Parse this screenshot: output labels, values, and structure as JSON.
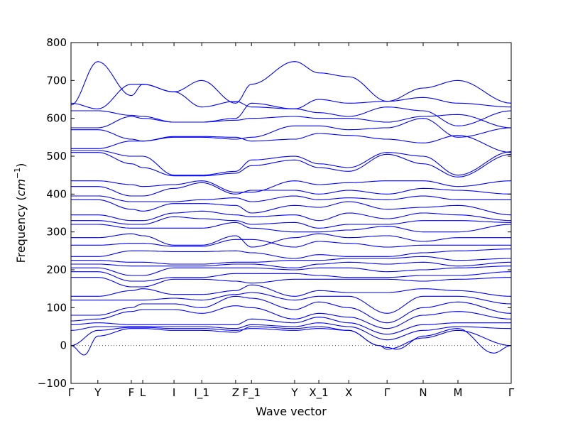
{
  "chart_data": {
    "type": "line",
    "title": "",
    "xlabel": "Wave vector",
    "ylabel": "Frequency (cm⁻¹)",
    "ylabel_base": "Frequency (",
    "ylabel_unit": "cm",
    "ylabel_exp": "−1",
    "ylabel_close": ")",
    "ylim": [
      -100,
      800
    ],
    "yticks": [
      -100,
      0,
      100,
      200,
      300,
      400,
      500,
      600,
      700,
      800
    ],
    "xlim": [
      0,
      1
    ],
    "grid": false,
    "zero_line": true,
    "line_color": "#0000ff",
    "kpoints": [
      {
        "label": "Γ",
        "x": 0.0
      },
      {
        "label": "Y",
        "x": 0.061
      },
      {
        "label": "F",
        "x": 0.137
      },
      {
        "label": "L",
        "x": 0.163
      },
      {
        "label": "I",
        "x": 0.234
      },
      {
        "label": "I_1",
        "x": 0.297
      },
      {
        "label": "Z",
        "x": 0.374
      },
      {
        "label": "F_1",
        "x": 0.41
      },
      {
        "label": "Y",
        "x": 0.508
      },
      {
        "label": "X_1",
        "x": 0.563
      },
      {
        "label": "X",
        "x": 0.631
      },
      {
        "label": "Γ",
        "x": 0.718
      },
      {
        "label": "N",
        "x": 0.8
      },
      {
        "label": "M",
        "x": 0.879
      },
      {
        "label": "Γ",
        "x": 1.0
      }
    ],
    "series": [
      {
        "x": [
          0,
          0.061,
          0.137,
          0.163,
          0.234,
          0.297,
          0.374,
          0.41,
          0.508,
          0.563,
          0.631,
          0.718,
          0.8,
          0.879,
          1
        ],
        "y": [
          635,
          750,
          660,
          690,
          670,
          700,
          640,
          690,
          750,
          720,
          710,
          645,
          680,
          700,
          640
        ]
      },
      {
        "x": [
          0,
          0.061,
          0.137,
          0.163,
          0.234,
          0.297,
          0.374,
          0.41,
          0.508,
          0.563,
          0.631,
          0.718,
          0.8,
          0.879,
          1
        ],
        "y": [
          640,
          625,
          690,
          690,
          670,
          630,
          645,
          630,
          625,
          650,
          640,
          645,
          655,
          640,
          630
        ]
      },
      {
        "x": [
          0,
          0.061,
          0.137,
          0.163,
          0.234,
          0.297,
          0.374,
          0.41,
          0.508,
          0.563,
          0.631,
          0.718,
          0.8,
          0.879,
          1
        ],
        "y": [
          620,
          620,
          608,
          605,
          590,
          590,
          600,
          640,
          625,
          615,
          605,
          630,
          620,
          580,
          620
        ]
      },
      {
        "x": [
          0,
          0.061,
          0.137,
          0.163,
          0.234,
          0.297,
          0.374,
          0.41,
          0.508,
          0.563,
          0.631,
          0.718,
          0.8,
          0.879,
          1
        ],
        "y": [
          575,
          575,
          605,
          600,
          590,
          590,
          595,
          600,
          605,
          600,
          600,
          590,
          605,
          610,
          575
        ]
      },
      {
        "x": [
          0,
          0.061,
          0.137,
          0.163,
          0.234,
          0.297,
          0.374,
          0.41,
          0.508,
          0.563,
          0.631,
          0.718,
          0.8,
          0.879,
          1
        ],
        "y": [
          570,
          570,
          545,
          540,
          550,
          550,
          545,
          550,
          580,
          580,
          570,
          575,
          600,
          550,
          575
        ]
      },
      {
        "x": [
          0,
          0.061,
          0.137,
          0.163,
          0.234,
          0.297,
          0.374,
          0.41,
          0.508,
          0.563,
          0.631,
          0.718,
          0.8,
          0.879,
          1
        ],
        "y": [
          520,
          520,
          540,
          540,
          552,
          552,
          550,
          540,
          545,
          560,
          555,
          545,
          535,
          555,
          510
        ]
      },
      {
        "x": [
          0,
          0.061,
          0.137,
          0.163,
          0.234,
          0.297,
          0.374,
          0.41,
          0.508,
          0.563,
          0.631,
          0.718,
          0.8,
          0.879,
          1
        ],
        "y": [
          515,
          515,
          500,
          500,
          450,
          450,
          460,
          490,
          500,
          480,
          470,
          510,
          500,
          450,
          512
        ]
      },
      {
        "x": [
          0,
          0.061,
          0.137,
          0.163,
          0.234,
          0.297,
          0.374,
          0.41,
          0.508,
          0.563,
          0.631,
          0.718,
          0.8,
          0.879,
          1
        ],
        "y": [
          510,
          510,
          480,
          470,
          448,
          448,
          455,
          475,
          490,
          470,
          460,
          505,
          480,
          445,
          505
        ]
      },
      {
        "x": [
          0,
          0.061,
          0.137,
          0.163,
          0.234,
          0.297,
          0.374,
          0.41,
          0.508,
          0.563,
          0.631,
          0.718,
          0.8,
          0.879,
          1
        ],
        "y": [
          435,
          435,
          425,
          420,
          425,
          435,
          405,
          405,
          435,
          425,
          430,
          435,
          435,
          420,
          435
        ]
      },
      {
        "x": [
          0,
          0.061,
          0.137,
          0.163,
          0.234,
          0.297,
          0.374,
          0.41,
          0.508,
          0.563,
          0.631,
          0.718,
          0.8,
          0.879,
          1
        ],
        "y": [
          420,
          420,
          395,
          395,
          415,
          430,
          400,
          410,
          410,
          400,
          410,
          400,
          415,
          410,
          400
        ]
      },
      {
        "x": [
          0,
          0.061,
          0.137,
          0.163,
          0.234,
          0.297,
          0.374,
          0.41,
          0.508,
          0.563,
          0.631,
          0.718,
          0.8,
          0.879,
          1
        ],
        "y": [
          395,
          395,
          380,
          380,
          380,
          385,
          390,
          380,
          395,
          385,
          390,
          385,
          395,
          385,
          385
        ]
      },
      {
        "x": [
          0,
          0.061,
          0.137,
          0.163,
          0.234,
          0.297,
          0.374,
          0.41,
          0.508,
          0.563,
          0.631,
          0.718,
          0.8,
          0.879,
          1
        ],
        "y": [
          385,
          385,
          360,
          355,
          375,
          375,
          370,
          350,
          370,
          365,
          380,
          360,
          365,
          370,
          345
        ]
      },
      {
        "x": [
          0,
          0.061,
          0.137,
          0.163,
          0.234,
          0.297,
          0.374,
          0.41,
          0.508,
          0.563,
          0.631,
          0.718,
          0.8,
          0.879,
          1
        ],
        "y": [
          345,
          345,
          330,
          330,
          350,
          355,
          345,
          340,
          345,
          330,
          350,
          335,
          350,
          345,
          330
        ]
      },
      {
        "x": [
          0,
          0.061,
          0.137,
          0.163,
          0.234,
          0.297,
          0.374,
          0.41,
          0.508,
          0.563,
          0.631,
          0.718,
          0.8,
          0.879,
          1
        ],
        "y": [
          330,
          330,
          320,
          320,
          340,
          335,
          330,
          320,
          325,
          310,
          320,
          320,
          330,
          330,
          325
        ]
      },
      {
        "x": [
          0,
          0.061,
          0.137,
          0.163,
          0.234,
          0.297,
          0.374,
          0.41,
          0.508,
          0.563,
          0.631,
          0.718,
          0.8,
          0.879,
          1
        ],
        "y": [
          320,
          320,
          310,
          310,
          310,
          310,
          325,
          310,
          300,
          300,
          305,
          315,
          300,
          300,
          320
        ]
      },
      {
        "x": [
          0,
          0.061,
          0.137,
          0.163,
          0.234,
          0.297,
          0.374,
          0.41,
          0.508,
          0.563,
          0.631,
          0.718,
          0.8,
          0.879,
          1
        ],
        "y": [
          285,
          285,
          295,
          290,
          265,
          265,
          290,
          260,
          285,
          295,
          285,
          290,
          275,
          285,
          285
        ]
      },
      {
        "x": [
          0,
          0.061,
          0.137,
          0.163,
          0.234,
          0.297,
          0.374,
          0.41,
          0.508,
          0.563,
          0.631,
          0.718,
          0.8,
          0.879,
          1
        ],
        "y": [
          265,
          265,
          270,
          270,
          262,
          262,
          280,
          280,
          260,
          275,
          270,
          260,
          265,
          265,
          265
        ]
      },
      {
        "x": [
          0,
          0.061,
          0.137,
          0.163,
          0.234,
          0.297,
          0.374,
          0.41,
          0.508,
          0.563,
          0.631,
          0.718,
          0.8,
          0.879,
          1
        ],
        "y": [
          235,
          235,
          250,
          250,
          248,
          248,
          250,
          245,
          230,
          240,
          235,
          235,
          245,
          250,
          255
        ]
      },
      {
        "x": [
          0,
          0.061,
          0.137,
          0.163,
          0.234,
          0.297,
          0.374,
          0.41,
          0.508,
          0.563,
          0.631,
          0.718,
          0.8,
          0.879,
          1
        ],
        "y": [
          225,
          225,
          220,
          220,
          215,
          215,
          220,
          220,
          225,
          225,
          230,
          230,
          235,
          225,
          230
        ]
      },
      {
        "x": [
          0,
          0.061,
          0.137,
          0.163,
          0.234,
          0.297,
          0.374,
          0.41,
          0.508,
          0.563,
          0.631,
          0.718,
          0.8,
          0.879,
          1
        ],
        "y": [
          215,
          215,
          210,
          210,
          210,
          210,
          215,
          215,
          205,
          215,
          220,
          215,
          220,
          210,
          220
        ]
      },
      {
        "x": [
          0,
          0.061,
          0.137,
          0.163,
          0.234,
          0.297,
          0.374,
          0.41,
          0.508,
          0.563,
          0.631,
          0.718,
          0.8,
          0.879,
          1
        ],
        "y": [
          205,
          205,
          185,
          185,
          205,
          205,
          205,
          205,
          200,
          205,
          205,
          195,
          200,
          205,
          210
        ]
      },
      {
        "x": [
          0,
          0.061,
          0.137,
          0.163,
          0.234,
          0.297,
          0.374,
          0.41,
          0.508,
          0.563,
          0.631,
          0.718,
          0.8,
          0.879,
          1
        ],
        "y": [
          195,
          195,
          170,
          170,
          180,
          180,
          190,
          190,
          190,
          185,
          180,
          180,
          185,
          185,
          195
        ]
      },
      {
        "x": [
          0,
          0.061,
          0.137,
          0.163,
          0.234,
          0.297,
          0.374,
          0.41,
          0.508,
          0.563,
          0.631,
          0.718,
          0.8,
          0.879,
          1
        ],
        "y": [
          180,
          180,
          155,
          155,
          175,
          175,
          170,
          165,
          175,
          175,
          175,
          175,
          170,
          175,
          180
        ]
      },
      {
        "x": [
          0,
          0.061,
          0.137,
          0.163,
          0.234,
          0.297,
          0.374,
          0.41,
          0.508,
          0.563,
          0.631,
          0.718,
          0.8,
          0.879,
          1
        ],
        "y": [
          130,
          130,
          145,
          150,
          135,
          135,
          145,
          160,
          130,
          145,
          140,
          140,
          150,
          145,
          130
        ]
      },
      {
        "x": [
          0,
          0.061,
          0.137,
          0.163,
          0.234,
          0.297,
          0.374,
          0.41,
          0.508,
          0.563,
          0.631,
          0.718,
          0.8,
          0.879,
          1
        ],
        "y": [
          120,
          120,
          120,
          120,
          125,
          120,
          135,
          140,
          120,
          130,
          130,
          85,
          130,
          130,
          110
        ]
      },
      {
        "x": [
          0,
          0.061,
          0.137,
          0.163,
          0.234,
          0.297,
          0.374,
          0.41,
          0.508,
          0.563,
          0.631,
          0.718,
          0.8,
          0.879,
          1
        ],
        "y": [
          80,
          80,
          100,
          110,
          110,
          100,
          130,
          125,
          95,
          115,
          100,
          60,
          100,
          115,
          85
        ]
      },
      {
        "x": [
          0,
          0.061,
          0.137,
          0.163,
          0.234,
          0.297,
          0.374,
          0.41,
          0.508,
          0.563,
          0.631,
          0.718,
          0.8,
          0.879,
          1
        ],
        "y": [
          65,
          70,
          90,
          95,
          95,
          85,
          105,
          100,
          70,
          85,
          75,
          45,
          80,
          90,
          70
        ]
      },
      {
        "x": [
          0,
          0.061,
          0.137,
          0.163,
          0.234,
          0.297,
          0.374,
          0.41,
          0.508,
          0.563,
          0.631,
          0.718,
          0.8,
          0.879,
          1
        ],
        "y": [
          55,
          60,
          55,
          55,
          55,
          55,
          55,
          70,
          60,
          75,
          60,
          30,
          55,
          60,
          60
        ]
      },
      {
        "x": [
          0,
          0.061,
          0.137,
          0.163,
          0.234,
          0.297,
          0.374,
          0.41,
          0.508,
          0.563,
          0.631,
          0.718,
          0.8,
          0.879,
          1
        ],
        "y": [
          40,
          50,
          50,
          50,
          50,
          50,
          45,
          55,
          50,
          60,
          50,
          15,
          40,
          50,
          45
        ]
      },
      {
        "x": [
          0,
          0.03,
          0.061,
          0.137,
          0.163,
          0.234,
          0.297,
          0.374,
          0.41,
          0.508,
          0.563,
          0.631,
          0.7,
          0.718,
          0.74,
          0.8,
          0.879,
          0.96,
          1
        ],
        "y": [
          0,
          -25,
          25,
          45,
          45,
          40,
          40,
          35,
          50,
          45,
          50,
          40,
          0,
          -5,
          -10,
          25,
          45,
          -20,
          0
        ]
      },
      {
        "x": [
          0,
          0.061,
          0.137,
          0.163,
          0.234,
          0.297,
          0.374,
          0.41,
          0.508,
          0.563,
          0.631,
          0.7,
          0.718,
          0.8,
          0.879,
          1
        ],
        "y": [
          0,
          40,
          48,
          48,
          45,
          45,
          40,
          45,
          40,
          45,
          40,
          0,
          -10,
          20,
          40,
          0
        ]
      }
    ]
  }
}
